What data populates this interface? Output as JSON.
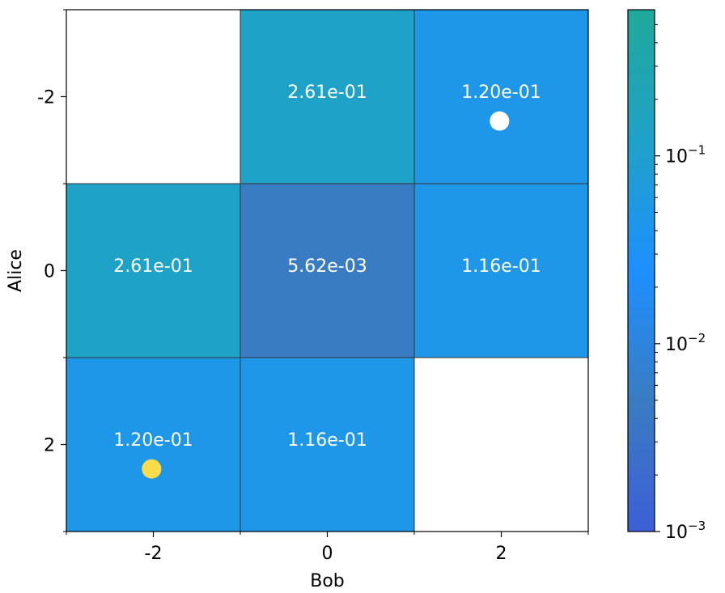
{
  "chart_data": {
    "type": "heatmap",
    "title": "",
    "xlabel": "Bob",
    "ylabel": "Alice",
    "x_categories": [
      "-2",
      "0",
      "2"
    ],
    "y_categories": [
      "-2",
      "0",
      "2"
    ],
    "cells": [
      {
        "row": 0,
        "col": 0,
        "value": null,
        "label": ""
      },
      {
        "row": 0,
        "col": 1,
        "value": 0.261,
        "label": "2.61e-01",
        "color": "#1fa2c8"
      },
      {
        "row": 0,
        "col": 2,
        "value": 0.12,
        "label": "1.20e-01",
        "color": "#1f97e8"
      },
      {
        "row": 1,
        "col": 0,
        "value": 0.261,
        "label": "2.61e-01",
        "color": "#1fa2c8"
      },
      {
        "row": 1,
        "col": 1,
        "value": 0.00562,
        "label": "5.62e-03",
        "color": "#3a7cc2"
      },
      {
        "row": 1,
        "col": 2,
        "value": 0.116,
        "label": "1.16e-01",
        "color": "#1f97e8"
      },
      {
        "row": 2,
        "col": 0,
        "value": 0.12,
        "label": "1.20e-01",
        "color": "#1f97e8"
      },
      {
        "row": 2,
        "col": 1,
        "value": 0.116,
        "label": "1.16e-01",
        "color": "#1f97e8"
      },
      {
        "row": 2,
        "col": 2,
        "value": null,
        "label": ""
      }
    ],
    "markers": [
      {
        "row": 0,
        "col": 2,
        "color": "#ffffff"
      },
      {
        "row": 2,
        "col": 0,
        "color": "#fddb4a"
      }
    ],
    "colorbar": {
      "scale": "log",
      "range": [
        0.001,
        0.6
      ],
      "ticks": [
        {
          "value": 0.1,
          "base": "10",
          "exp": "−1"
        },
        {
          "value": 0.01,
          "base": "10",
          "exp": "−2"
        },
        {
          "value": 0.001,
          "base": "10",
          "exp": "−3"
        }
      ],
      "color_stops": [
        "#3d5fd6",
        "#3a7cc2",
        "#1e90ff",
        "#1fa2c8",
        "#20a89a"
      ]
    }
  }
}
